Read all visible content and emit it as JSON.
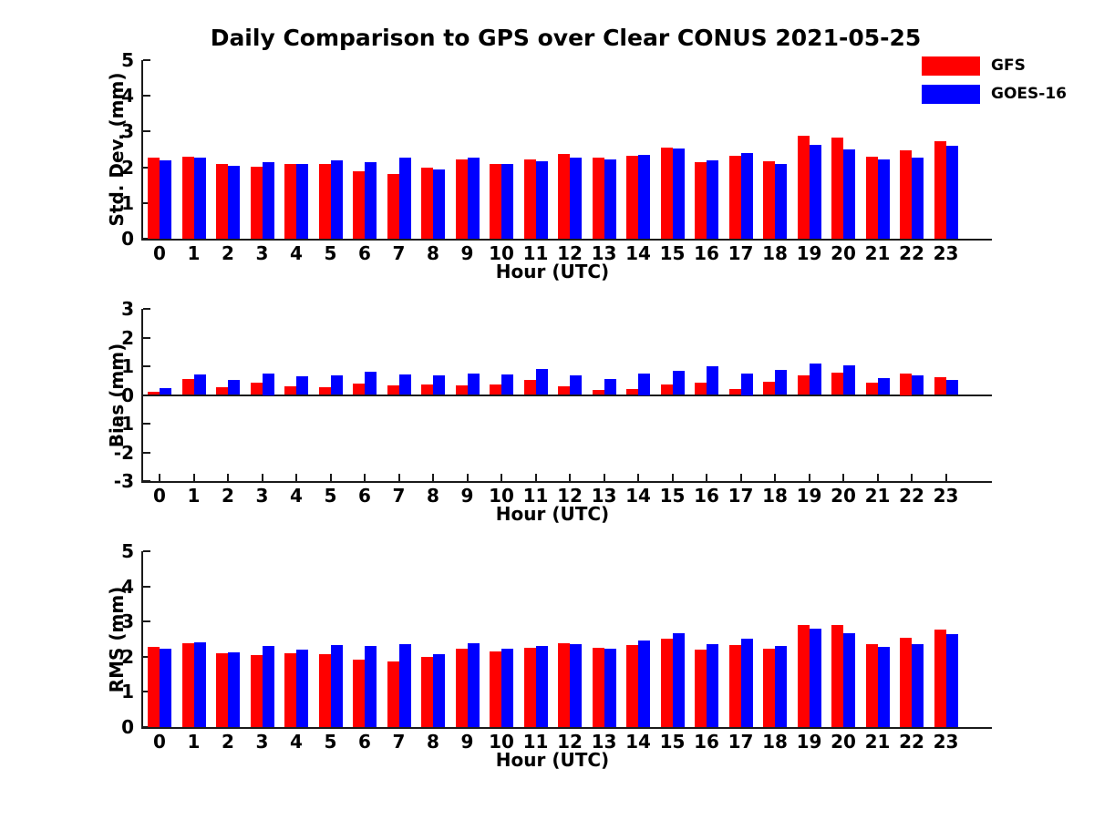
{
  "title": "Daily Comparison to GPS over Clear CONUS 2021-05-25",
  "xlabel": "Hour (UTC)",
  "legend": [
    {
      "label": "GFS",
      "color": "#ff0000"
    },
    {
      "label": "GOES-16",
      "color": "#0000ff"
    }
  ],
  "colors": {
    "axis": "#1a1a1a",
    "background": "#ffffff",
    "gfs": "#ff0000",
    "goes16": "#0000ff"
  },
  "chart_data": [
    {
      "type": "bar",
      "ylabel": "Std. Dev. (mm)",
      "ylim": [
        0,
        5
      ],
      "yticks": [
        5,
        4,
        3,
        2,
        1,
        0
      ],
      "grid": false,
      "legend_position": "upper-right-outside",
      "categories": [
        "0",
        "1",
        "2",
        "3",
        "4",
        "5",
        "6",
        "7",
        "8",
        "9",
        "10",
        "11",
        "12",
        "13",
        "14",
        "15",
        "16",
        "17",
        "18",
        "19",
        "20",
        "21",
        "22",
        "23"
      ],
      "series": [
        {
          "name": "GFS",
          "color": "#ff0000",
          "values": [
            2.28,
            2.3,
            2.08,
            2.02,
            2.08,
            2.08,
            1.9,
            1.82,
            1.98,
            2.22,
            2.1,
            2.22,
            2.36,
            2.28,
            2.32,
            2.56,
            2.15,
            2.32,
            2.18,
            2.87,
            2.82,
            2.3,
            2.48,
            2.74
          ]
        },
        {
          "name": "GOES-16",
          "color": "#0000ff",
          "values": [
            2.2,
            2.28,
            2.05,
            2.15,
            2.1,
            2.2,
            2.15,
            2.26,
            1.95,
            2.26,
            2.08,
            2.16,
            2.28,
            2.22,
            2.34,
            2.52,
            2.2,
            2.4,
            2.1,
            2.64,
            2.5,
            2.22,
            2.27,
            2.6
          ]
        }
      ]
    },
    {
      "type": "bar",
      "ylabel": "Bias (mm)",
      "ylim": [
        -3,
        3
      ],
      "yticks": [
        3,
        2,
        1,
        0,
        -1,
        -2,
        -3
      ],
      "grid": false,
      "zero_line": true,
      "categories": [
        "0",
        "1",
        "2",
        "3",
        "4",
        "5",
        "6",
        "7",
        "8",
        "9",
        "10",
        "11",
        "12",
        "13",
        "14",
        "15",
        "16",
        "17",
        "18",
        "19",
        "20",
        "21",
        "22",
        "23"
      ],
      "series": [
        {
          "name": "GFS",
          "color": "#ff0000",
          "values": [
            0.1,
            0.54,
            0.27,
            0.42,
            0.3,
            0.27,
            0.4,
            0.32,
            0.35,
            0.32,
            0.37,
            0.52,
            0.31,
            0.16,
            0.22,
            0.38,
            0.42,
            0.21,
            0.47,
            0.69,
            0.79,
            0.44,
            0.75,
            0.61
          ]
        },
        {
          "name": "GOES-16",
          "color": "#0000ff",
          "values": [
            0.24,
            0.72,
            0.51,
            0.75,
            0.66,
            0.69,
            0.8,
            0.71,
            0.68,
            0.74,
            0.71,
            0.9,
            0.68,
            0.56,
            0.75,
            0.85,
            1.01,
            0.75,
            0.87,
            1.08,
            1.04,
            0.59,
            0.67,
            0.52
          ]
        }
      ]
    },
    {
      "type": "bar",
      "ylabel": "RMS (mm)",
      "ylim": [
        0,
        5
      ],
      "yticks": [
        5,
        4,
        3,
        2,
        1,
        0
      ],
      "grid": false,
      "categories": [
        "0",
        "1",
        "2",
        "3",
        "4",
        "5",
        "6",
        "7",
        "8",
        "9",
        "10",
        "11",
        "12",
        "13",
        "14",
        "15",
        "16",
        "17",
        "18",
        "19",
        "20",
        "21",
        "22",
        "23"
      ],
      "series": [
        {
          "name": "GFS",
          "color": "#ff0000",
          "values": [
            2.28,
            2.38,
            2.1,
            2.05,
            2.1,
            2.08,
            1.93,
            1.86,
            2.0,
            2.22,
            2.15,
            2.26,
            2.38,
            2.26,
            2.33,
            2.52,
            2.2,
            2.34,
            2.24,
            2.9,
            2.9,
            2.35,
            2.55,
            2.78
          ]
        },
        {
          "name": "GOES-16",
          "color": "#0000ff",
          "values": [
            2.22,
            2.4,
            2.12,
            2.3,
            2.2,
            2.32,
            2.3,
            2.36,
            2.08,
            2.38,
            2.22,
            2.3,
            2.36,
            2.23,
            2.45,
            2.66,
            2.36,
            2.52,
            2.3,
            2.81,
            2.68,
            2.28,
            2.36,
            2.64
          ]
        }
      ]
    }
  ]
}
